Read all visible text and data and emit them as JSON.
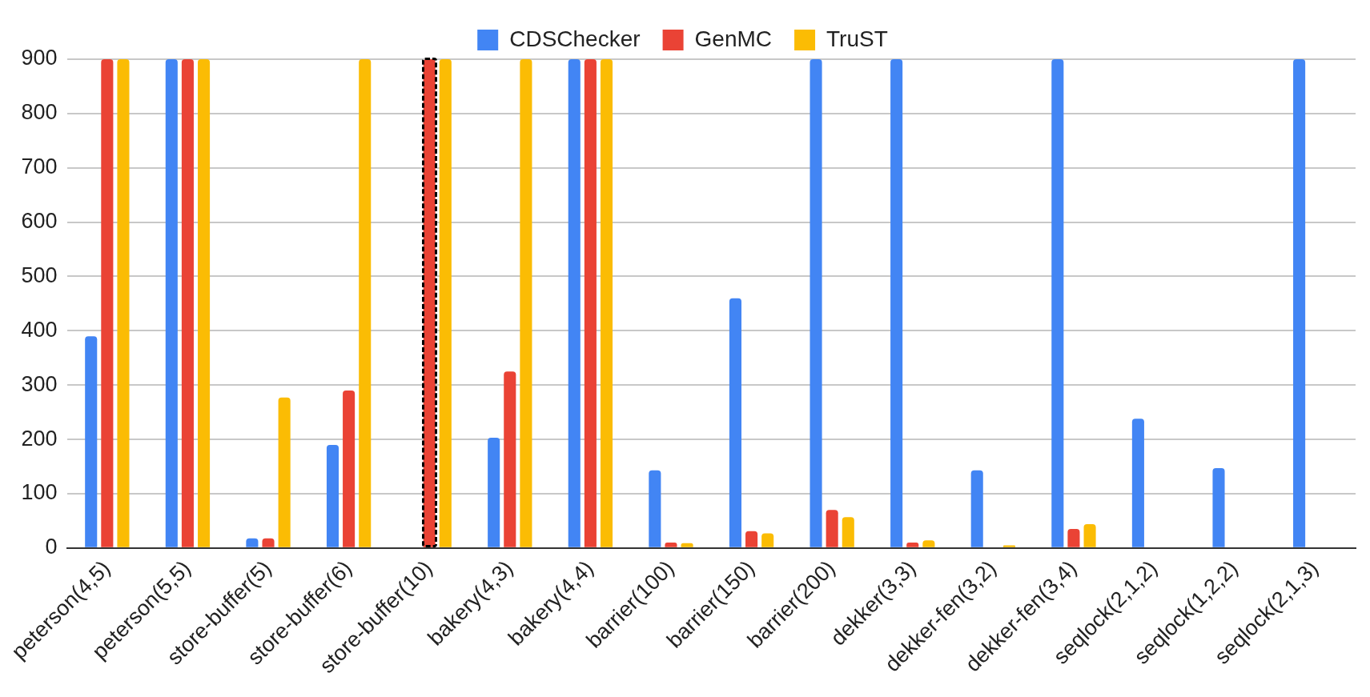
{
  "chart_data": {
    "type": "bar",
    "categories": [
      "peterson(4,5)",
      "peterson(5,5)",
      "store-buffer(5)",
      "store-buffer(6)",
      "store-buffer(10)",
      "bakery(4,3)",
      "bakery(4,4)",
      "barrier(100)",
      "barrier(150)",
      "barrier(200)",
      "dekker(3,3)",
      "dekker-fen(3,2)",
      "dekker-fen(3,4)",
      "seqlock(2,1,2)",
      "seqlock(1,2,2)",
      "seqlock(2,1,3)"
    ],
    "series": [
      {
        "name": "CDSChecker",
        "color": "#4285f4",
        "values": [
          390,
          900,
          18,
          190,
          null,
          203,
          900,
          143,
          460,
          900,
          900,
          143,
          900,
          238,
          147,
          900
        ]
      },
      {
        "name": "GenMC",
        "color": "#ea4335",
        "values": [
          900,
          900,
          18,
          290,
          900,
          325,
          900,
          10,
          31,
          70,
          10,
          null,
          35,
          null,
          null,
          null
        ]
      },
      {
        "name": "TruST",
        "color": "#fbbc04",
        "values": [
          900,
          900,
          277,
          900,
          900,
          900,
          900,
          9,
          27,
          57,
          14,
          5,
          44,
          null,
          null,
          null
        ]
      }
    ],
    "ylim": [
      0,
      900
    ],
    "yticks": [
      0,
      100,
      200,
      300,
      400,
      500,
      600,
      700,
      800,
      900
    ],
    "grid": "y",
    "legend": "top"
  }
}
